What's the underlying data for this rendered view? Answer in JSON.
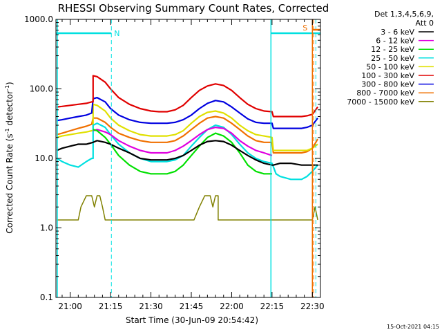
{
  "chart_data": {
    "type": "line",
    "title": "RHESSI Observing Summary Count Rates, Corrected",
    "xlabel": "Start Time (30-Jun-09 20:54:42)",
    "ylabel_main": "Corrected Count Rate (s",
    "ylabel_exp1": "-1",
    "ylabel_mid": " detector",
    "ylabel_exp2": "-1",
    "ylabel_end": ")",
    "yscale": "log",
    "ylim": [
      0.1,
      1000
    ],
    "y_ticks": [
      "0.1",
      "1.0",
      "10.0",
      "100.0",
      "1000.0"
    ],
    "xlim": [
      54.7,
      153
    ],
    "x_ticks": [
      {
        "m": 60,
        "label": "21:00"
      },
      {
        "m": 75,
        "label": "21:15"
      },
      {
        "m": 90,
        "label": "21:30"
      },
      {
        "m": 105,
        "label": "21:45"
      },
      {
        "m": 120,
        "label": "22:00"
      },
      {
        "m": 135,
        "label": "22:15"
      },
      {
        "m": 150,
        "label": "22:30"
      }
    ],
    "x_time_axis": "minutes after 20:00 on 30-Jun-09",
    "legend_header": [
      "Det 1,3,4,5,6,9,",
      "Att 0"
    ],
    "footer_date": "15-Oct-2021 04:15",
    "night_marker_label": "N",
    "saa_marker_label": "S",
    "series": [
      {
        "name": "3 - 6 keV",
        "color": "#000000",
        "x": [
          55,
          57,
          60,
          63,
          66,
          68.5,
          70,
          73,
          75,
          78,
          82,
          86,
          90,
          93,
          96,
          99,
          102,
          105,
          108,
          111,
          114,
          117,
          120,
          123,
          126,
          129,
          132,
          135,
          135.5,
          138,
          142,
          146,
          148,
          150,
          152
        ],
        "y": [
          13,
          14,
          15,
          16,
          16,
          17,
          18,
          17,
          16,
          14,
          12,
          10,
          9.5,
          9.5,
          9.5,
          10,
          11,
          13,
          15.5,
          17.5,
          18,
          17.5,
          15.5,
          13,
          11,
          9.5,
          8.5,
          8,
          8,
          8.5,
          8.5,
          8,
          8,
          8,
          8
        ]
      },
      {
        "name": "6 - 12 keV",
        "color": "#e000e0",
        "x": [
          68.5,
          70,
          73,
          75,
          78,
          82,
          86,
          90,
          93,
          96,
          99,
          102,
          105,
          108,
          111,
          114,
          117,
          120,
          123,
          126,
          129,
          132,
          135
        ],
        "y": [
          25,
          26,
          24,
          22,
          18,
          15,
          13,
          12,
          12,
          12,
          13,
          15,
          18,
          22,
          26,
          28,
          27,
          23,
          18,
          15,
          13,
          12,
          11
        ]
      },
      {
        "name": "12 - 25 keV",
        "color": "#00e000",
        "x": [
          68.5,
          70,
          73,
          75,
          78,
          82,
          86,
          90,
          93,
          96,
          99,
          102,
          105,
          108,
          111,
          114,
          117,
          120,
          123,
          126,
          129,
          132,
          135
        ],
        "y": [
          26,
          25,
          20,
          16,
          11,
          8,
          6.5,
          6,
          6,
          6,
          6.5,
          8,
          11,
          15,
          20,
          23,
          21,
          17,
          12,
          8,
          6.5,
          6,
          6
        ]
      },
      {
        "name": "25 - 50 keV",
        "color": "#00e0e0",
        "x": [
          55,
          57,
          60,
          63,
          66,
          68,
          68.5,
          70,
          73,
          75,
          78,
          82,
          86,
          90,
          93,
          96,
          99,
          102,
          105,
          108,
          111,
          114,
          117,
          120,
          123,
          126,
          129,
          132,
          135,
          136.5,
          138,
          142,
          146,
          148,
          150,
          152
        ],
        "y": [
          10,
          9,
          8,
          7.5,
          9,
          10,
          30,
          32,
          28,
          22,
          16,
          12,
          10,
          9,
          9,
          9,
          9.5,
          11,
          15,
          20,
          26,
          30,
          28,
          22,
          16,
          12,
          10,
          9,
          8.5,
          6,
          5.5,
          5,
          5,
          5.5,
          6.5,
          8
        ]
      },
      {
        "name": "50 - 100 keV",
        "color": "#e0e000",
        "x": [
          55,
          57,
          60,
          63,
          66,
          68,
          68.5,
          70,
          73,
          75,
          78,
          82,
          86,
          90,
          93,
          96,
          99,
          102,
          105,
          108,
          111,
          114,
          117,
          120,
          123,
          126,
          129,
          132,
          135,
          135.5,
          138,
          142,
          146,
          148,
          150,
          152
        ],
        "y": [
          20,
          21,
          22,
          23,
          24,
          25,
          60,
          58,
          48,
          38,
          30,
          25,
          22,
          21,
          21,
          21,
          22,
          25,
          32,
          40,
          46,
          48,
          45,
          38,
          30,
          25,
          22,
          21,
          20,
          13,
          13,
          13,
          13,
          13,
          14,
          16
        ]
      },
      {
        "name": "100 - 300 keV",
        "color": "#e00000",
        "x": [
          55,
          57,
          60,
          63,
          66,
          68,
          68.5,
          70,
          73,
          75,
          78,
          82,
          86,
          90,
          93,
          96,
          99,
          102,
          105,
          108,
          111,
          114,
          117,
          120,
          123,
          126,
          129,
          132,
          135,
          135.5,
          138,
          142,
          146,
          148,
          150,
          152
        ],
        "y": [
          55,
          56,
          58,
          60,
          62,
          65,
          155,
          150,
          125,
          100,
          75,
          60,
          52,
          48,
          47,
          47,
          50,
          58,
          75,
          95,
          110,
          118,
          112,
          95,
          75,
          60,
          52,
          48,
          47,
          40,
          40,
          40,
          40,
          41,
          43,
          55
        ]
      },
      {
        "name": "300 - 800 keV",
        "color": "#0000e0",
        "x": [
          55,
          57,
          60,
          63,
          66,
          68,
          68.5,
          70,
          73,
          75,
          78,
          82,
          86,
          90,
          93,
          96,
          99,
          102,
          105,
          108,
          111,
          114,
          117,
          120,
          123,
          126,
          129,
          132,
          135,
          135.5,
          138,
          142,
          146,
          148,
          150,
          152
        ],
        "y": [
          35,
          36,
          38,
          40,
          42,
          45,
          72,
          75,
          65,
          52,
          42,
          36,
          33,
          32,
          32,
          32,
          33,
          36,
          42,
          52,
          62,
          68,
          65,
          55,
          45,
          37,
          33,
          32,
          32,
          27,
          27,
          27,
          27,
          28,
          30,
          38
        ]
      },
      {
        "name": "800 - 7000 keV",
        "color": "#f07000",
        "x": [
          55,
          57,
          60,
          63,
          66,
          68,
          68.5,
          70,
          73,
          75,
          78,
          82,
          86,
          90,
          93,
          96,
          99,
          102,
          105,
          108,
          111,
          114,
          117,
          120,
          123,
          126,
          129,
          132,
          135,
          135.5,
          138,
          142,
          146,
          148,
          150,
          152
        ],
        "y": [
          22,
          23,
          25,
          27,
          29,
          31,
          38,
          38,
          33,
          28,
          23,
          20,
          18,
          17,
          17,
          17,
          18,
          21,
          26,
          32,
          38,
          40,
          38,
          32,
          26,
          21,
          18,
          17,
          17,
          12,
          12,
          12,
          12,
          12.5,
          14,
          19
        ]
      },
      {
        "name": "7000 - 15000 keV",
        "color": "#808000",
        "x": [
          55,
          63,
          64,
          66,
          68,
          69,
          70,
          71,
          72,
          73,
          74,
          105,
          106,
          108,
          110,
          112,
          113,
          114,
          115,
          116,
          150,
          151,
          152
        ],
        "y": [
          1.3,
          1.3,
          2,
          2.9,
          2.9,
          2,
          2.9,
          2.9,
          2,
          1.3,
          1.3,
          1.3,
          1.3,
          2,
          2.9,
          2.9,
          2,
          2.9,
          1.3,
          1.3,
          1.3,
          2,
          1.3
        ]
      }
    ]
  }
}
